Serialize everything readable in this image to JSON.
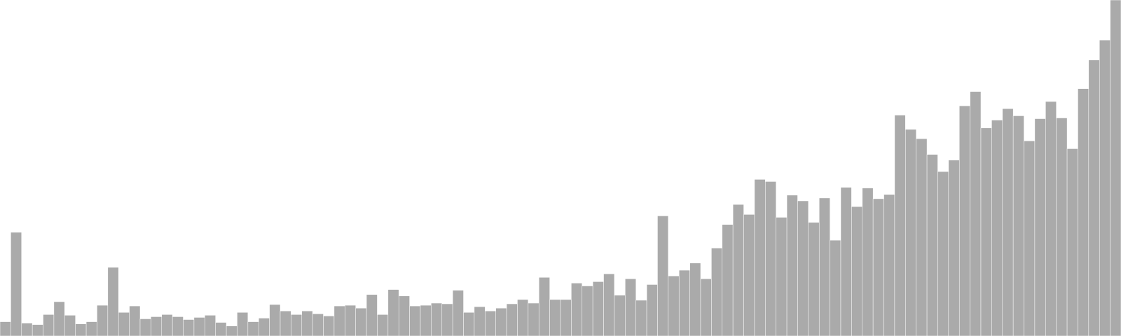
{
  "chart_data": {
    "type": "bar",
    "title": "",
    "xlabel": "",
    "ylabel": "",
    "ylim": [
      0,
      470
    ],
    "grid": false,
    "legend": "none",
    "bar_color": "#aaaaaa",
    "values": [
      20,
      145,
      18,
      16,
      30,
      48,
      29,
      17,
      20,
      43,
      96,
      33,
      42,
      24,
      27,
      30,
      27,
      23,
      26,
      29,
      19,
      14,
      33,
      20,
      25,
      44,
      35,
      30,
      35,
      31,
      28,
      42,
      43,
      39,
      58,
      30,
      65,
      56,
      42,
      43,
      46,
      45,
      64,
      33,
      41,
      35,
      39,
      45,
      51,
      46,
      82,
      51,
      51,
      74,
      70,
      76,
      87,
      57,
      80,
      50,
      72,
      168,
      84,
      92,
      102,
      80,
      123,
      156,
      184,
      170,
      219,
      216,
      166,
      197,
      189,
      159,
      193,
      134,
      208,
      181,
      207,
      192,
      198,
      309,
      289,
      276,
      254,
      230,
      246,
      322,
      342,
      291,
      302,
      318,
      308,
      273,
      304,
      328,
      305,
      262,
      346,
      386,
      414,
      470
    ]
  }
}
